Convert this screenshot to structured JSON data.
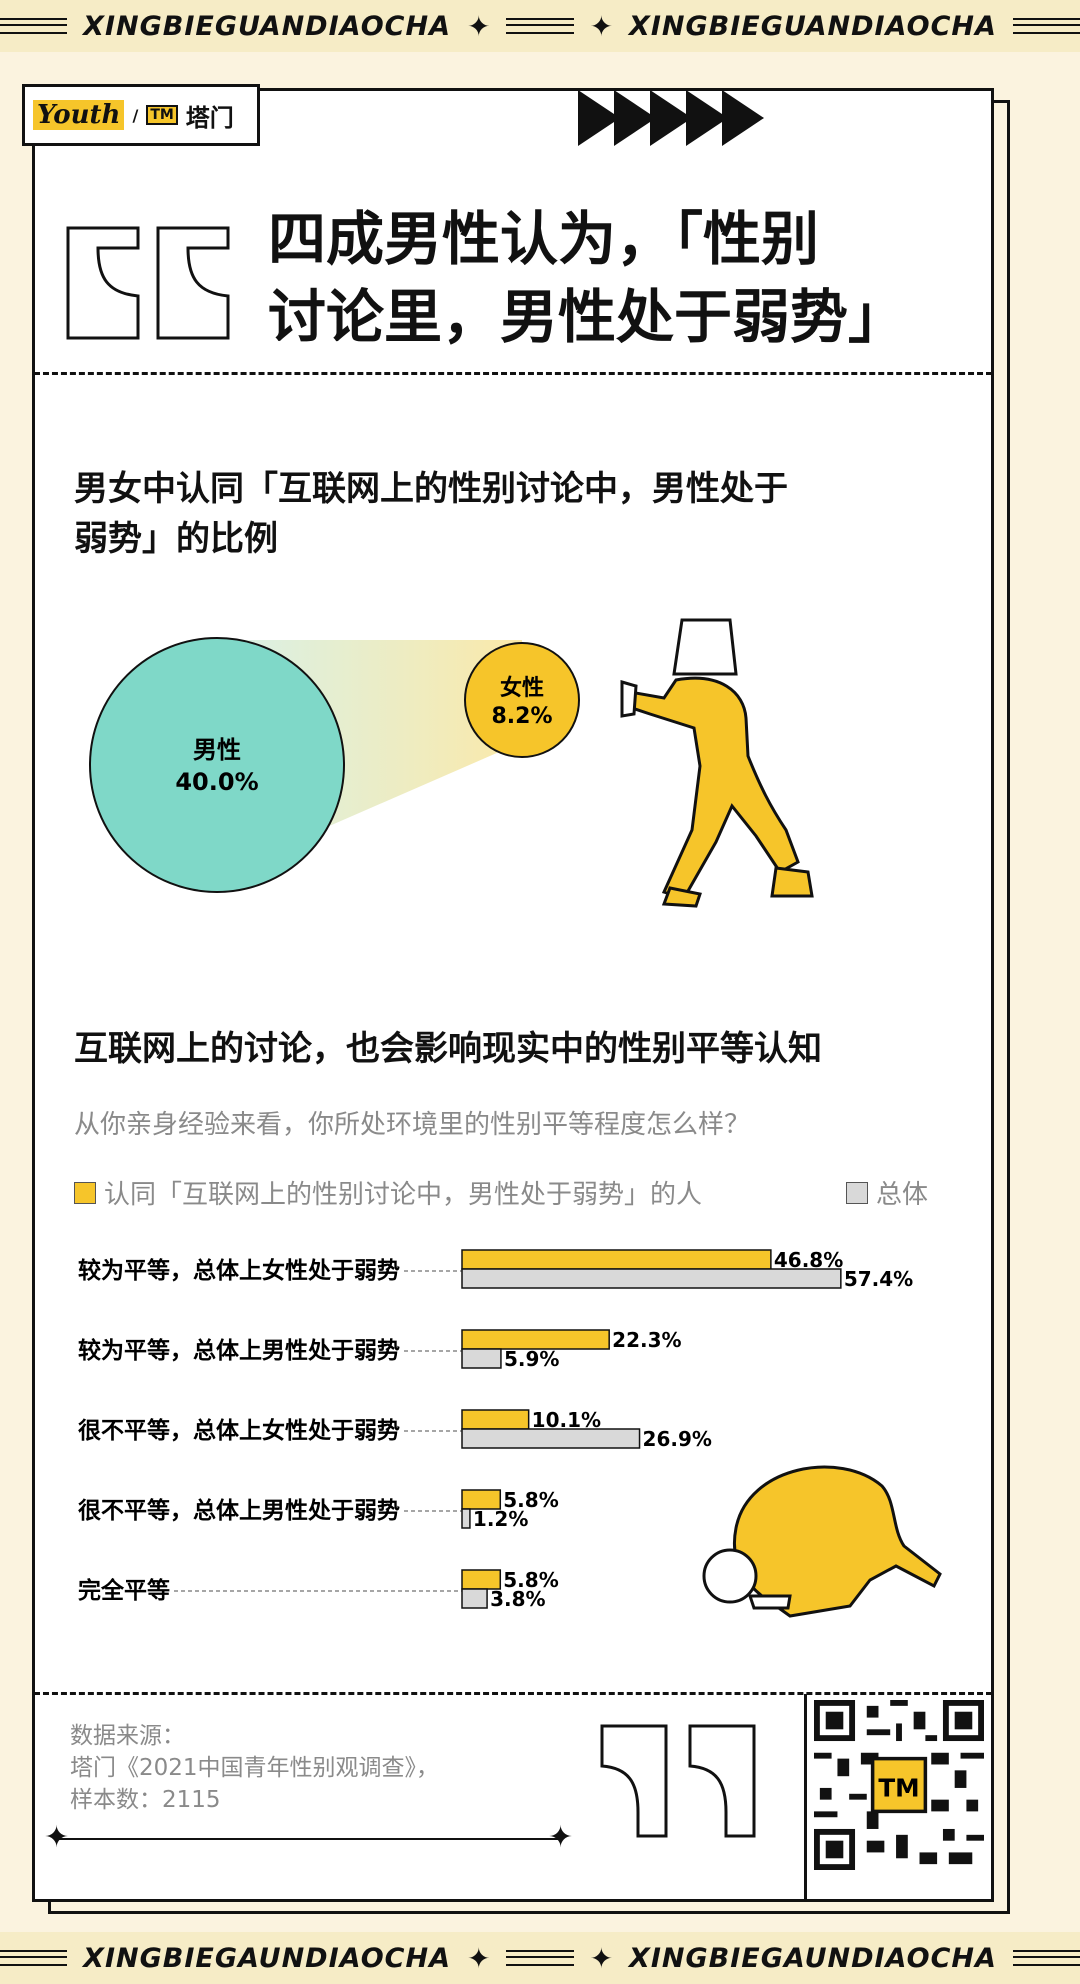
{
  "banner": {
    "top_text": "XINGBIEGUANDIAOCHA",
    "bottom_text": "XINGBIEGAUNDIAOCHA"
  },
  "logo": {
    "youth": "Youth",
    "tamen": "塔门",
    "tm_mark": "TM"
  },
  "headline": {
    "line1": "四成男性认为，「性别",
    "line2": "讨论里，男性处于弱势」"
  },
  "section1": {
    "title_line1": "男女中认同「互联网上的性别讨论中，男性处于",
    "title_line2": "弱势」的比例"
  },
  "section2": {
    "title": "互联网上的讨论，也会影响现实中的性别平等认知",
    "question": "从你亲身经验来看，你所处环境里的性别平等程度怎么样？",
    "legend_agree": "认同「互联网上的性别讨论中，男性处于弱势」的人",
    "legend_total": "总体"
  },
  "source": {
    "label": "数据来源：",
    "line2": "塔门《2021中国青年性别观调查》，",
    "line3": "样本数：2115"
  },
  "colors": {
    "male": "#7fd8c8",
    "female": "#f6c52a",
    "agree": "#f6c52a",
    "total": "#d9d9d9"
  },
  "chart_data": [
    {
      "type": "bubble",
      "title": "男女中认同「互联网上的性别讨论中，男性处于弱势」的比例",
      "series": [
        {
          "name": "男性",
          "value": 40.0,
          "label": "40.0%"
        },
        {
          "name": "女性",
          "value": 8.2,
          "label": "8.2%"
        }
      ]
    },
    {
      "type": "bar",
      "title": "互联网上的讨论，也会影响现实中的性别平等认知",
      "orientation": "horizontal",
      "categories": [
        "较为平等，总体上女性处于弱势",
        "较为平等，总体上男性处于弱势",
        "很不平等，总体上女性处于弱势",
        "很不平等，总体上男性处于弱势",
        "完全平等"
      ],
      "series": [
        {
          "name": "认同「互联网上的性别讨论中，男性处于弱势」的人",
          "values": [
            46.8,
            22.3,
            10.1,
            5.8,
            5.8
          ],
          "labels": [
            "46.8%",
            "22.3%",
            "10.1%",
            "5.8%",
            "5.8%"
          ]
        },
        {
          "name": "总体",
          "values": [
            57.4,
            5.9,
            26.9,
            1.2,
            3.8
          ],
          "labels": [
            "57.4%",
            "5.9%",
            "26.9%",
            "1.2%",
            "3.8%"
          ]
        }
      ]
    }
  ]
}
